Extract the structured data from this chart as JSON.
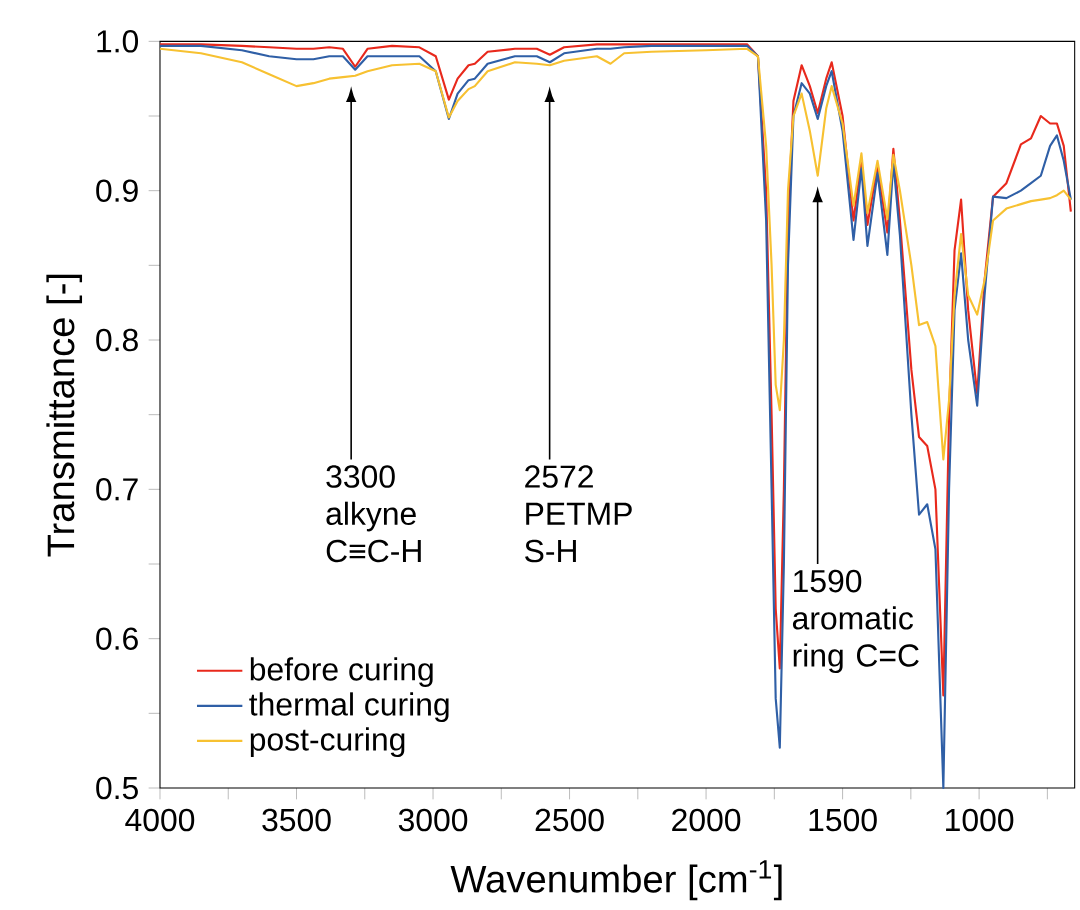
{
  "chart_data": {
    "type": "line",
    "xlabel": "Wavenumber [cm$^{-1}$]",
    "ylabel": "Transmittance [-]",
    "xlim": [
      4000,
      650
    ],
    "ylim": [
      0.5,
      1.0
    ],
    "xticks": [
      4000,
      {
        "value": 3750,
        "label": null
      },
      3500,
      {
        "value": 3250,
        "label": null
      },
      3000,
      {
        "value": 2750,
        "label": null
      },
      2500,
      {
        "value": 2250,
        "label": null
      },
      2000,
      {
        "value": 1750,
        "label": null
      },
      1500,
      {
        "value": 1250,
        "label": null
      },
      1000,
      {
        "value": 750,
        "label": null
      }
    ],
    "yticks": [
      {
        "value": 0.5,
        "label": "0.5"
      },
      {
        "value": 0.55,
        "label": null
      },
      {
        "value": 0.6,
        "label": "0.6"
      },
      {
        "value": 0.65,
        "label": null
      },
      {
        "value": 0.7,
        "label": "0.7"
      },
      {
        "value": 0.75,
        "label": null
      },
      {
        "value": 0.8,
        "label": "0.8"
      },
      {
        "value": 0.85,
        "label": null
      },
      {
        "value": 0.9,
        "label": "0.9"
      },
      {
        "value": 0.95,
        "label": null
      },
      {
        "value": 1.0,
        "label": "1.0"
      }
    ],
    "grid": false,
    "legend": "bottom left",
    "marker": "none",
    "line_style": "solid",
    "x": [
      4000,
      3850,
      3700,
      3600,
      3500,
      3438,
      3380,
      3330,
      3285,
      3240,
      3150,
      3050,
      2990,
      2942,
      2910,
      2870,
      2847,
      2800,
      2700,
      2620,
      2572,
      2520,
      2400,
      2350,
      2300,
      2200,
      2000,
      1850,
      1810,
      1780,
      1760,
      1745,
      1730,
      1715,
      1700,
      1680,
      1650,
      1620,
      1591,
      1560,
      1540,
      1500,
      1460,
      1431,
      1409,
      1372,
      1336,
      1314,
      1290,
      1248,
      1220,
      1190,
      1160,
      1131,
      1110,
      1090,
      1066,
      1040,
      1007,
      980,
      949,
      900,
      847,
      810,
      774,
      740,
      715,
      690,
      664
    ],
    "series": [
      {
        "name": "before curing",
        "color": "#e8291c",
        "values": [
          0.998,
          0.998,
          0.997,
          0.996,
          0.995,
          0.995,
          0.996,
          0.995,
          0.983,
          0.995,
          0.997,
          0.996,
          0.99,
          0.961,
          0.975,
          0.984,
          0.985,
          0.993,
          0.995,
          0.995,
          0.991,
          0.996,
          0.998,
          0.998,
          0.998,
          0.998,
          0.998,
          0.998,
          0.99,
          0.9,
          0.75,
          0.62,
          0.58,
          0.7,
          0.88,
          0.96,
          0.984,
          0.97,
          0.952,
          0.975,
          0.986,
          0.95,
          0.88,
          0.92,
          0.877,
          0.917,
          0.872,
          0.928,
          0.88,
          0.78,
          0.735,
          0.729,
          0.7,
          0.562,
          0.75,
          0.86,
          0.894,
          0.82,
          0.764,
          0.84,
          0.896,
          0.905,
          0.931,
          0.935,
          0.95,
          0.945,
          0.945,
          0.93,
          0.886
        ]
      },
      {
        "name": "thermal curing",
        "color": "#2f5fa6",
        "values": [
          0.997,
          0.997,
          0.994,
          0.99,
          0.988,
          0.988,
          0.99,
          0.99,
          0.981,
          0.99,
          0.99,
          0.99,
          0.98,
          0.948,
          0.965,
          0.974,
          0.975,
          0.985,
          0.99,
          0.99,
          0.986,
          0.992,
          0.995,
          0.995,
          0.996,
          0.997,
          0.997,
          0.997,
          0.99,
          0.88,
          0.7,
          0.56,
          0.527,
          0.65,
          0.85,
          0.95,
          0.972,
          0.965,
          0.948,
          0.97,
          0.98,
          0.94,
          0.867,
          0.915,
          0.863,
          0.912,
          0.857,
          0.919,
          0.87,
          0.75,
          0.683,
          0.69,
          0.66,
          0.5,
          0.7,
          0.82,
          0.858,
          0.8,
          0.756,
          0.83,
          0.896,
          0.895,
          0.9,
          0.905,
          0.91,
          0.93,
          0.937,
          0.92,
          0.894
        ]
      },
      {
        "name": "post-curing",
        "color": "#f7c131",
        "values": [
          0.995,
          0.992,
          0.986,
          0.978,
          0.97,
          0.972,
          0.975,
          0.976,
          0.977,
          0.98,
          0.984,
          0.985,
          0.98,
          0.949,
          0.96,
          0.968,
          0.97,
          0.98,
          0.986,
          0.985,
          0.984,
          0.987,
          0.99,
          0.985,
          0.992,
          0.993,
          0.994,
          0.995,
          0.99,
          0.93,
          0.85,
          0.77,
          0.753,
          0.8,
          0.9,
          0.95,
          0.965,
          0.94,
          0.91,
          0.955,
          0.97,
          0.945,
          0.89,
          0.925,
          0.885,
          0.92,
          0.881,
          0.924,
          0.9,
          0.85,
          0.81,
          0.812,
          0.796,
          0.72,
          0.76,
          0.83,
          0.871,
          0.83,
          0.817,
          0.84,
          0.88,
          0.888,
          0.891,
          0.893,
          0.894,
          0.895,
          0.897,
          0.9,
          0.894
        ]
      }
    ],
    "annotations": [
      "3300 alkyne C≡C-H",
      "2572 PETMP S-H",
      "1590 aromatic ring C=C"
    ]
  }
}
